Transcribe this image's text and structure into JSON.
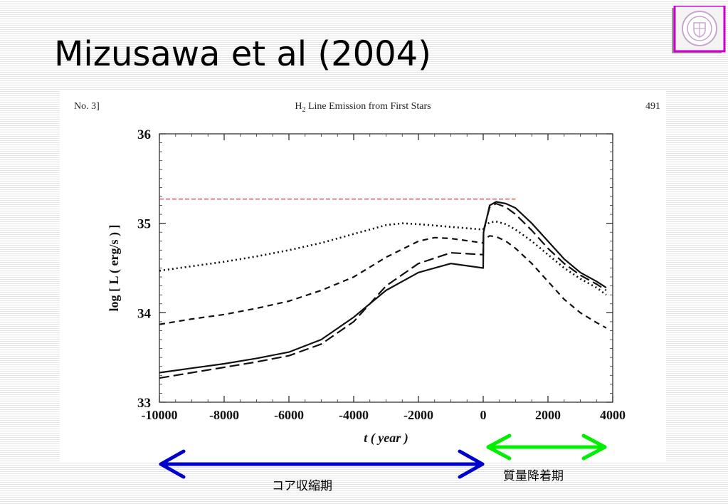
{
  "slide": {
    "title": "Mizusawa et al (2004)"
  },
  "figure_header": {
    "left": "No. 3]",
    "center_prefix": "H",
    "center_sub": "2",
    "center_suffix": " Line Emission from First Stars",
    "right": "491"
  },
  "annotations": {
    "core_contraction_label": "コア収縮期",
    "core_contraction_color": "#0000cc",
    "mass_accretion_label": "質量降着期",
    "mass_accretion_color": "#00ee00",
    "reference_line_color": "#cc0000"
  },
  "logo": {
    "icon": "university-seal-icon",
    "border_color": "#cc00cc"
  },
  "chart_data": {
    "type": "line",
    "xlabel": "t ( year )",
    "ylabel": "log [ L ( erg/s ) ]",
    "xlim": [
      -10000,
      4000
    ],
    "ylim": [
      33,
      36
    ],
    "x_ticks": [
      -10000,
      -8000,
      -6000,
      -4000,
      -2000,
      0,
      2000,
      4000
    ],
    "x_tick_labels": [
      "-10000",
      "-8000",
      "-6000",
      "-4000",
      "-2000",
      "0",
      "2000",
      "4000"
    ],
    "y_ticks": [
      33,
      34,
      35,
      36
    ],
    "y_tick_labels": [
      "33",
      "34",
      "35",
      "36"
    ],
    "grid": false,
    "legend": "none",
    "reference_line": {
      "y": 35.27,
      "x_range": [
        -10000,
        1000
      ],
      "style": "dashed"
    },
    "series": [
      {
        "style": "solid",
        "points": [
          [
            -10000,
            33.33
          ],
          [
            -9000,
            33.38
          ],
          [
            -8000,
            33.43
          ],
          [
            -7000,
            33.49
          ],
          [
            -6000,
            33.56
          ],
          [
            -5000,
            33.7
          ],
          [
            -4000,
            33.95
          ],
          [
            -3000,
            34.25
          ],
          [
            -2000,
            34.45
          ],
          [
            -1000,
            34.55
          ],
          [
            0,
            34.5
          ],
          [
            10,
            34.9
          ],
          [
            200,
            35.2
          ],
          [
            400,
            35.24
          ],
          [
            700,
            35.22
          ],
          [
            1000,
            35.17
          ],
          [
            1500,
            35.0
          ],
          [
            2000,
            34.8
          ],
          [
            2500,
            34.6
          ],
          [
            3000,
            34.45
          ],
          [
            3500,
            34.35
          ],
          [
            3800,
            34.28
          ]
        ]
      },
      {
        "style": "long-dash",
        "points": [
          [
            -10000,
            33.27
          ],
          [
            -9000,
            33.33
          ],
          [
            -8000,
            33.39
          ],
          [
            -7000,
            33.45
          ],
          [
            -6000,
            33.52
          ],
          [
            -5000,
            33.65
          ],
          [
            -4000,
            33.9
          ],
          [
            -3000,
            34.3
          ],
          [
            -2000,
            34.55
          ],
          [
            -1000,
            34.67
          ],
          [
            0,
            34.65
          ],
          [
            10,
            34.92
          ],
          [
            200,
            35.18
          ],
          [
            400,
            35.22
          ],
          [
            700,
            35.18
          ],
          [
            1000,
            35.1
          ],
          [
            1500,
            34.92
          ],
          [
            2000,
            34.72
          ],
          [
            2500,
            34.55
          ],
          [
            3000,
            34.42
          ],
          [
            3500,
            34.32
          ],
          [
            3800,
            34.25
          ]
        ]
      },
      {
        "style": "dotted",
        "points": [
          [
            -10000,
            34.47
          ],
          [
            -9000,
            34.52
          ],
          [
            -8000,
            34.57
          ],
          [
            -7000,
            34.63
          ],
          [
            -6000,
            34.7
          ],
          [
            -5000,
            34.78
          ],
          [
            -4000,
            34.88
          ],
          [
            -3000,
            34.98
          ],
          [
            -2500,
            35.0
          ],
          [
            -2000,
            34.99
          ],
          [
            -1000,
            34.96
          ],
          [
            0,
            34.93
          ],
          [
            10,
            34.96
          ],
          [
            200,
            35.01
          ],
          [
            400,
            35.02
          ],
          [
            700,
            34.99
          ],
          [
            1000,
            34.93
          ],
          [
            1500,
            34.8
          ],
          [
            2000,
            34.65
          ],
          [
            2500,
            34.5
          ],
          [
            3000,
            34.38
          ],
          [
            3500,
            34.28
          ],
          [
            3800,
            34.2
          ]
        ]
      },
      {
        "style": "dashed",
        "points": [
          [
            -10000,
            33.87
          ],
          [
            -9000,
            33.93
          ],
          [
            -8000,
            33.98
          ],
          [
            -7000,
            34.05
          ],
          [
            -6000,
            34.13
          ],
          [
            -5000,
            34.25
          ],
          [
            -4000,
            34.4
          ],
          [
            -3000,
            34.62
          ],
          [
            -2000,
            34.8
          ],
          [
            -1500,
            34.84
          ],
          [
            -1000,
            34.83
          ],
          [
            0,
            34.78
          ],
          [
            10,
            34.82
          ],
          [
            200,
            34.86
          ],
          [
            400,
            34.85
          ],
          [
            700,
            34.8
          ],
          [
            1000,
            34.72
          ],
          [
            1500,
            34.55
          ],
          [
            2000,
            34.35
          ],
          [
            2500,
            34.15
          ],
          [
            3000,
            34.0
          ],
          [
            3500,
            33.89
          ],
          [
            3800,
            33.83
          ]
        ]
      }
    ]
  }
}
